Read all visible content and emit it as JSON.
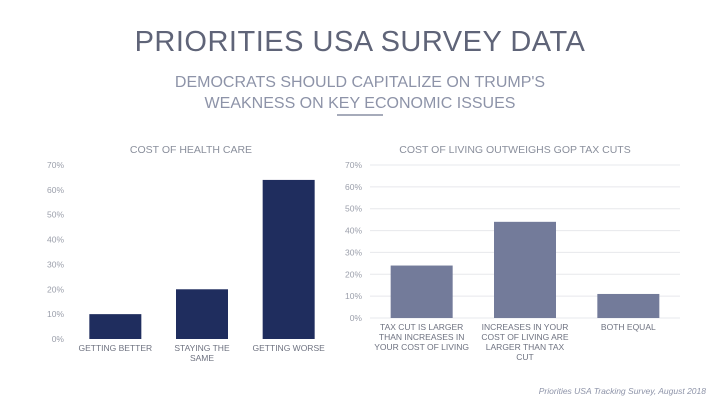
{
  "header": {
    "title": "PRIORITIES USA SURVEY DATA",
    "subtitle_line1": "DEMOCRATS SHOULD CAPITALIZE ON TRUMP'S",
    "subtitle_line2": "WEAKNESS ON KEY ECONOMIC ISSUES"
  },
  "source": "Priorities USA Tracking Survey, August 2018",
  "colors": {
    "left_bars": "#1f2d5e",
    "right_bars": "#737b9a"
  },
  "chart_data": [
    {
      "type": "bar",
      "title": "COST OF HEALTH CARE",
      "categories": [
        [
          "GETTING BETTER"
        ],
        [
          "STAYING THE",
          "SAME"
        ],
        [
          "GETTING WORSE"
        ]
      ],
      "values": [
        10,
        20,
        64
      ],
      "ylim": [
        0,
        70
      ],
      "yticks": [
        "0%",
        "10%",
        "20%",
        "30%",
        "40%",
        "50%",
        "60%",
        "70%"
      ],
      "grid": false
    },
    {
      "type": "bar",
      "title": "COST OF LIVING OUTWEIGHS GOP TAX CUTS",
      "categories": [
        [
          "TAX CUT IS LARGER",
          "THAN INCREASES IN",
          "YOUR COST OF LIVING"
        ],
        [
          "INCREASES IN YOUR",
          "COST OF LIVING ARE",
          "LARGER THAN TAX",
          "CUT"
        ],
        [
          "BOTH EQUAL"
        ]
      ],
      "values": [
        24,
        44,
        11
      ],
      "ylim": [
        0,
        70
      ],
      "yticks": [
        "0%",
        "10%",
        "20%",
        "30%",
        "40%",
        "50%",
        "60%",
        "70%"
      ],
      "grid": true
    }
  ]
}
